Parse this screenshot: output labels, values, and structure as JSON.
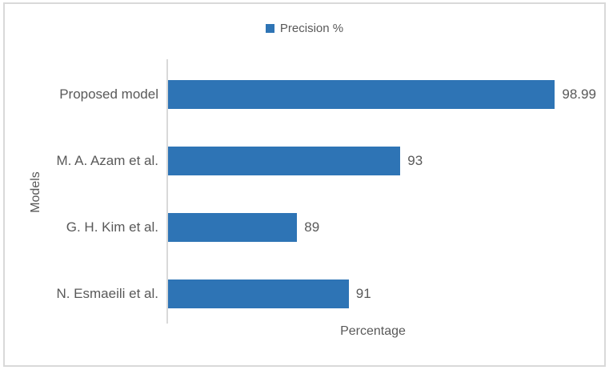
{
  "chart_data": {
    "type": "bar",
    "orientation": "horizontal",
    "title": "",
    "legend": [
      "Precision %"
    ],
    "legend_position": "top-center",
    "categories": [
      "Proposed model",
      "M. A. Azam et al.",
      "G. H. Kim et al.",
      "N. Esmaeili et al."
    ],
    "series": [
      {
        "name": "Precision %",
        "values": [
          98.99,
          93,
          89,
          91
        ]
      }
    ],
    "value_labels": [
      "98.99",
      "93",
      "89",
      "91"
    ],
    "xlabel": "Percentage",
    "ylabel": "Models",
    "xlim": [
      84,
      100.9
    ],
    "grid": false,
    "bar_color": "#2E74B5",
    "axis_line_color": "#D9D9D9",
    "frame_border_color": "#D9D9D9",
    "text_color": "#595959",
    "background": "#FFFFFF"
  }
}
